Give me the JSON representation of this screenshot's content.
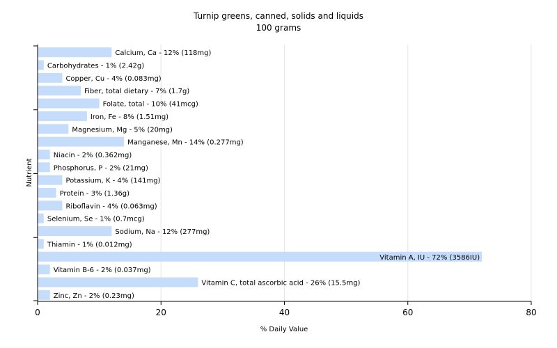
{
  "chart_data": {
    "type": "bar",
    "orientation": "horizontal",
    "title": "Turnip greens, canned, solids and liquids",
    "subtitle": "100 grams",
    "xlabel": "% Daily Value",
    "ylabel": "Nutrient",
    "xlim": [
      0,
      80
    ],
    "xticks": [
      0,
      20,
      40,
      60,
      80
    ],
    "grid": true,
    "bar_color": "#c6dcfb",
    "categories": [
      "Calcium, Ca",
      "Carbohydrates",
      "Copper, Cu",
      "Fiber, total dietary",
      "Folate, total",
      "Iron, Fe",
      "Magnesium, Mg",
      "Manganese, Mn",
      "Niacin",
      "Phosphorus, P",
      "Potassium, K",
      "Protein",
      "Riboflavin",
      "Selenium, Se",
      "Sodium, Na",
      "Thiamin",
      "Vitamin A, IU",
      "Vitamin B-6",
      "Vitamin C, total ascorbic acid",
      "Zinc, Zn"
    ],
    "values": [
      12,
      1,
      4,
      7,
      10,
      8,
      5,
      14,
      2,
      2,
      4,
      3,
      4,
      1,
      12,
      1,
      72,
      2,
      26,
      2
    ],
    "labels": [
      "Calcium, Ca - 12% (118mg)",
      "Carbohydrates - 1% (2.42g)",
      "Copper, Cu - 4% (0.083mg)",
      "Fiber, total dietary - 7% (1.7g)",
      "Folate, total - 10% (41mcg)",
      "Iron, Fe - 8% (1.51mg)",
      "Magnesium, Mg - 5% (20mg)",
      "Manganese, Mn - 14% (0.277mg)",
      "Niacin - 2% (0.362mg)",
      "Phosphorus, P - 2% (21mg)",
      "Potassium, K - 4% (141mg)",
      "Protein - 3% (1.36g)",
      "Riboflavin - 4% (0.063mg)",
      "Selenium, Se - 1% (0.7mcg)",
      "Sodium, Na - 12% (277mg)",
      "Thiamin - 1% (0.012mg)",
      "Vitamin A, IU - 72% (3586IU)",
      "Vitamin B-6 - 2% (0.037mg)",
      "Vitamin C, total ascorbic acid - 26% (15.5mg)",
      "Zinc, Zn - 2% (0.23mg)"
    ]
  }
}
